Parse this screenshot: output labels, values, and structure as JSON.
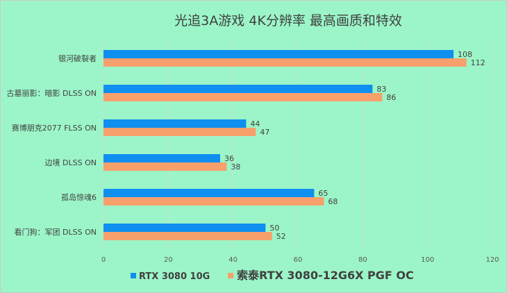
{
  "chart_data": {
    "type": "bar",
    "orientation": "horizontal",
    "title": "光追3A游戏 4K分辨率 最高画质和特效",
    "categories": [
      "银河破裂者",
      "古墓丽影：暗影 DLSS ON",
      "赛博朋克2077 FLSS ON",
      "边境 DLSS ON",
      "孤岛惊魂6",
      "看门狗：军团 DLSS ON"
    ],
    "series": [
      {
        "name": "RTX 3080 10G",
        "values": [
          108,
          83,
          44,
          36,
          65,
          50
        ],
        "color": "#0f8ff0"
      },
      {
        "name": "索泰RTX 3080-12G6X PGF OC",
        "values": [
          112,
          86,
          47,
          38,
          68,
          52
        ],
        "color": "#f7a06c"
      }
    ],
    "xlim": [
      0,
      120
    ],
    "xticks": [
      0,
      20,
      40,
      60,
      80,
      100,
      120
    ],
    "xlabel": "",
    "ylabel": "",
    "grid": true,
    "legend": "bottom"
  }
}
